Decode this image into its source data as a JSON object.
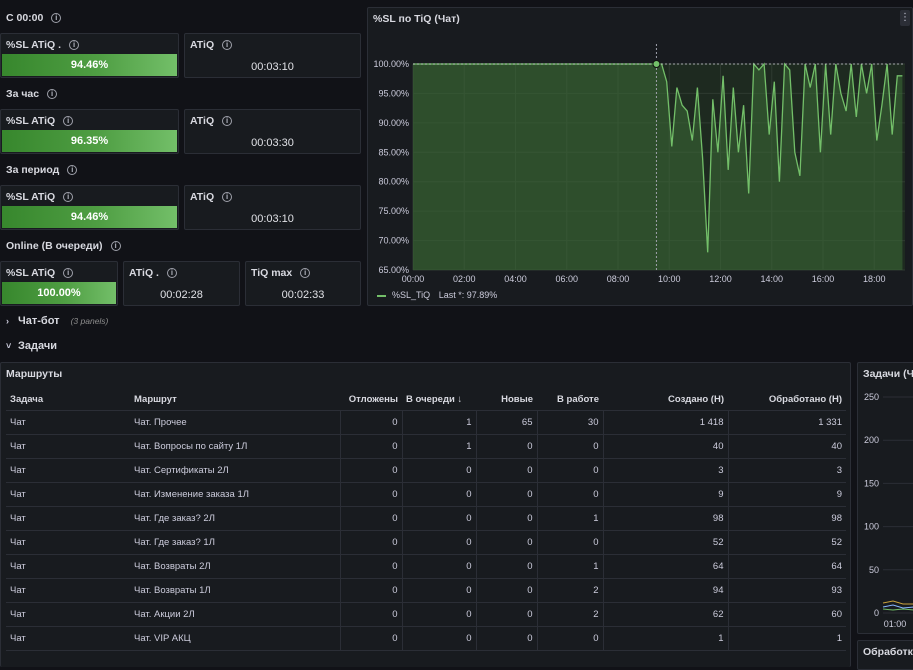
{
  "groups": [
    {
      "title": "С 00:00",
      "sl_label": "%SL ATiQ .",
      "sl_value": "94.46%",
      "atiq_label": "ATiQ",
      "atiq_value": "00:03:10"
    },
    {
      "title": "За час",
      "sl_label": "%SL ATiQ",
      "sl_value": "96.35%",
      "atiq_label": "ATiQ",
      "atiq_value": "00:03:30"
    },
    {
      "title": "За период",
      "sl_label": "%SL ATiQ",
      "sl_value": "94.46%",
      "atiq_label": "ATiQ",
      "atiq_value": "00:03:10"
    }
  ],
  "online": {
    "title": "Online (В очереди)",
    "sl_label": "%SL ATiQ",
    "sl_value": "100.00%",
    "atiq_label": "ATiQ .",
    "atiq_value": "00:02:28",
    "tiqmax_label": "TiQ max",
    "tiqmax_value": "00:02:33"
  },
  "chart_panel": {
    "title": "%SL по TiQ (Чат)",
    "legend_label": "%SL_TiQ",
    "legend_last": "Last *: 97.89%",
    "menu_icon": "kebab-menu-icon"
  },
  "chart_data": {
    "type": "area",
    "title": "%SL по TiQ (Чат)",
    "x_ticks": [
      "00:00",
      "02:00",
      "04:00",
      "06:00",
      "08:00",
      "10:00",
      "12:00",
      "14:00",
      "16:00",
      "18:00"
    ],
    "y_ticks": [
      "100.00%",
      "95.00%",
      "90.00%",
      "85.00%",
      "80.00%",
      "75.00%",
      "70.00%",
      "65.00%"
    ],
    "ylim": [
      65,
      100
    ],
    "xlim": [
      0,
      19.2
    ],
    "grid": true,
    "legend_placement": "bottom-left",
    "series": [
      {
        "name": "%SL_TiQ",
        "color": "#73bf69",
        "x": [
          0,
          9.5,
          9.7,
          9.9,
          10.1,
          10.3,
          10.5,
          10.7,
          10.9,
          11.1,
          11.3,
          11.5,
          11.7,
          11.9,
          12.1,
          12.3,
          12.5,
          12.7,
          12.9,
          13.1,
          13.3,
          13.5,
          13.7,
          13.9,
          14.1,
          14.3,
          14.5,
          14.7,
          14.9,
          15.1,
          15.3,
          15.5,
          15.7,
          15.9,
          16.1,
          16.3,
          16.5,
          16.7,
          16.9,
          17.1,
          17.3,
          17.5,
          17.7,
          17.9,
          18.1,
          18.3,
          18.5,
          18.7,
          18.9,
          19.1
        ],
        "y": [
          100,
          100,
          100,
          97,
          86,
          96,
          93,
          92,
          87,
          96,
          84,
          68,
          94,
          85,
          98,
          82,
          96,
          85,
          93,
          78,
          100,
          99,
          100,
          88,
          97,
          80,
          100,
          99,
          85,
          81,
          100,
          96,
          100,
          85,
          100,
          88,
          100,
          95,
          92,
          100,
          91,
          100,
          95,
          100,
          87,
          93,
          100,
          88,
          98,
          98
        ]
      }
    ]
  },
  "collapsed_row": {
    "title": "Чат-бот",
    "meta": "(3 panels)"
  },
  "expanded_row": {
    "title": "Задачи"
  },
  "table_panel": {
    "title": "Маршруты",
    "columns": [
      "Задача",
      "Маршрут",
      "Отложены",
      "В очереди",
      "Новые",
      "В работе",
      "Создано (Н)",
      "Обработано (Н)"
    ],
    "sort_icon": "sort-desc-arrow-icon",
    "rows": [
      [
        "Чат",
        "Чат. Прочее",
        "0",
        "1",
        "65",
        "30",
        "1 418",
        "1 331"
      ],
      [
        "Чат",
        "Чат. Вопросы по сайту 1Л",
        "0",
        "1",
        "0",
        "0",
        "40",
        "40"
      ],
      [
        "Чат",
        "Чат. Сертификаты 2Л",
        "0",
        "0",
        "0",
        "0",
        "3",
        "3"
      ],
      [
        "Чат",
        "Чат. Изменение заказа 1Л",
        "0",
        "0",
        "0",
        "0",
        "9",
        "9"
      ],
      [
        "Чат",
        "Чат. Где заказ? 2Л",
        "0",
        "0",
        "0",
        "1",
        "98",
        "98"
      ],
      [
        "Чат",
        "Чат. Где заказ? 1Л",
        "0",
        "0",
        "0",
        "0",
        "52",
        "52"
      ],
      [
        "Чат",
        "Чат. Возвраты 2Л",
        "0",
        "0",
        "0",
        "1",
        "64",
        "64"
      ],
      [
        "Чат",
        "Чат. Возвраты 1Л",
        "0",
        "0",
        "0",
        "2",
        "94",
        "93"
      ],
      [
        "Чат",
        "Чат. Акции 2Л",
        "0",
        "0",
        "0",
        "2",
        "62",
        "60"
      ],
      [
        "Чат",
        "Чат. VIP АКЦ",
        "0",
        "0",
        "0",
        "0",
        "1",
        "1"
      ]
    ]
  },
  "right_panel": {
    "title": "Задачи (Ча",
    "y_ticks": [
      "250",
      "200",
      "150",
      "100",
      "50",
      "0"
    ],
    "x_tick": "01:00"
  },
  "right_panel_bottom": {
    "title": "Обработка"
  }
}
